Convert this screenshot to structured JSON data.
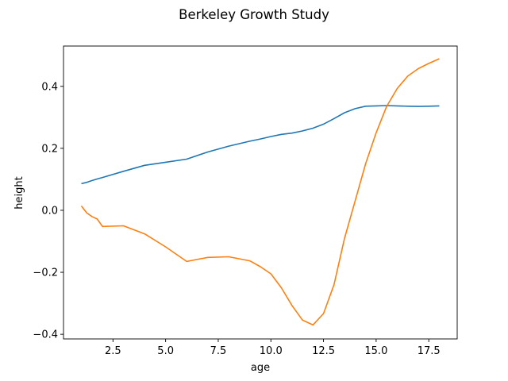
{
  "chart_data": {
    "type": "line",
    "title": "Berkeley Growth Study",
    "xlabel": "age",
    "ylabel": "height",
    "xlim": [
      0.15,
      18.85
    ],
    "ylim": [
      -0.415,
      0.53
    ],
    "xticks": [
      2.5,
      5.0,
      7.5,
      10.0,
      12.5,
      15.0,
      17.5
    ],
    "xtick_labels": [
      "2.5",
      "5.0",
      "7.5",
      "10.0",
      "12.5",
      "15.0",
      "17.5"
    ],
    "yticks": [
      -0.4,
      -0.2,
      0.0,
      0.2,
      0.4
    ],
    "ytick_labels": [
      "−0.4",
      "−0.2",
      "0.0",
      "0.2",
      "0.4"
    ],
    "grid": false,
    "legend": null,
    "series": [
      {
        "name": "series-1",
        "color": "#1f77b4",
        "x": [
          1,
          1.25,
          1.5,
          1.75,
          2,
          3,
          4,
          5,
          6,
          7,
          8,
          9,
          9.5,
          10,
          10.5,
          11,
          11.5,
          12,
          12.5,
          13,
          13.5,
          14,
          14.5,
          15,
          15.5,
          16,
          16.5,
          17,
          17.5,
          18
        ],
        "y": [
          0.086,
          0.09,
          0.096,
          0.101,
          0.106,
          0.126,
          0.145,
          0.155,
          0.165,
          0.188,
          0.207,
          0.223,
          0.23,
          0.238,
          0.245,
          0.249,
          0.256,
          0.265,
          0.278,
          0.296,
          0.315,
          0.328,
          0.336,
          0.337,
          0.338,
          0.337,
          0.336,
          0.335,
          0.336,
          0.337
        ]
      },
      {
        "name": "series-2",
        "color": "#ff7f0e",
        "x": [
          1,
          1.25,
          1.5,
          1.75,
          2,
          3,
          4,
          5,
          6,
          7,
          8,
          9,
          9.5,
          10,
          10.5,
          11,
          11.5,
          12,
          12.5,
          13,
          13.5,
          14,
          14.5,
          15,
          15.5,
          16,
          16.5,
          17,
          17.5,
          18
        ],
        "y": [
          0.014,
          -0.008,
          -0.02,
          -0.028,
          -0.052,
          -0.05,
          -0.076,
          -0.118,
          -0.165,
          -0.152,
          -0.15,
          -0.163,
          -0.182,
          -0.205,
          -0.25,
          -0.307,
          -0.354,
          -0.37,
          -0.333,
          -0.24,
          -0.09,
          0.03,
          0.15,
          0.25,
          0.335,
          0.393,
          0.433,
          0.457,
          0.474,
          0.489
        ]
      }
    ]
  }
}
